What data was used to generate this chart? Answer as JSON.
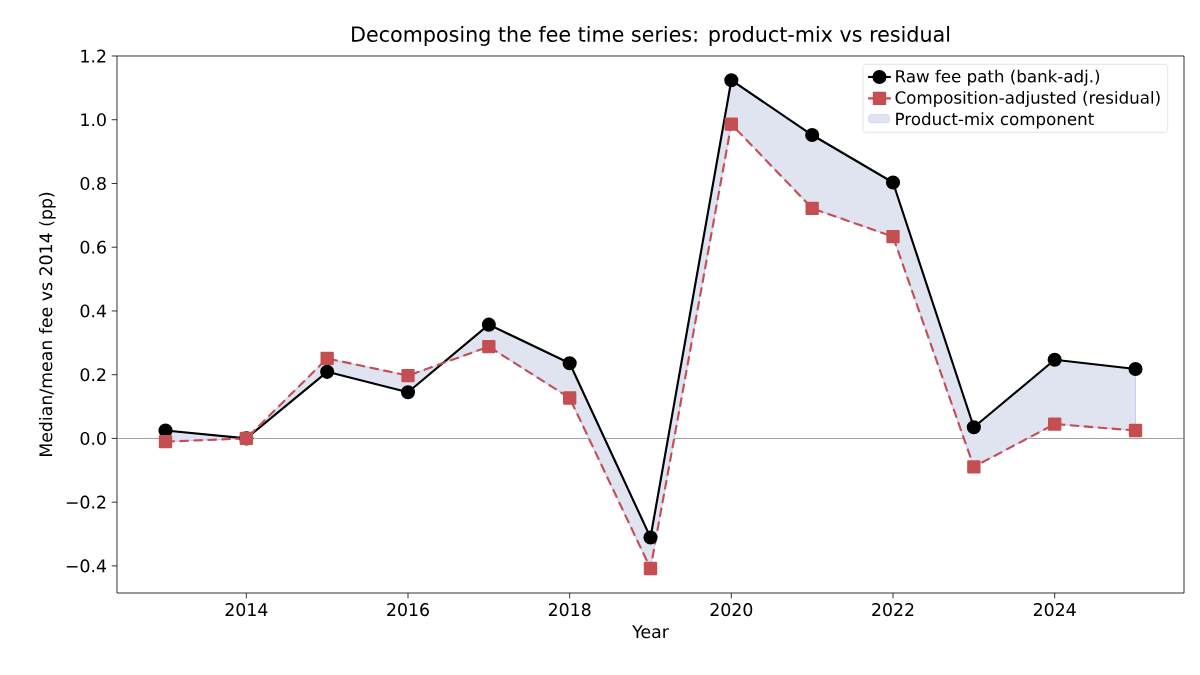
{
  "chart_data": {
    "type": "line",
    "title": "Decomposing the fee time series: product-mix vs residual",
    "xlabel": "Year",
    "ylabel": "Median/mean fee vs 2014 (pp)",
    "x": [
      2013,
      2014,
      2015,
      2016,
      2017,
      2018,
      2019,
      2020,
      2021,
      2022,
      2023,
      2024,
      2025
    ],
    "series": [
      {
        "name": "Raw fee path (bank-adj.)",
        "color": "#000000",
        "marker": "circle",
        "line_style": "solid",
        "values": [
          0.025,
          0,
          0.209,
          0.145,
          0.357,
          0.236,
          -0.311,
          1.124,
          0.952,
          0.803,
          0.035,
          0.247,
          0.218
        ],
        "lower": [
          -0.01,
          0,
          0.251,
          0.197,
          0.288,
          0.127,
          -0.408,
          0.986,
          0.722,
          0.633,
          -0.089,
          0.045,
          0.025
        ],
        "upper": [
          0.025,
          0,
          0.209,
          0.145,
          0.357,
          0.236,
          -0.311,
          1.124,
          0.952,
          0.803,
          0.035,
          0.247,
          0.218
        ]
      },
      {
        "name": "Composition-adjusted (residual)",
        "color": "#c44e52",
        "marker": "square",
        "line_style": "dashed",
        "values": [
          -0.01,
          0,
          0.251,
          0.197,
          0.288,
          0.127,
          -0.408,
          0.986,
          0.722,
          0.633,
          -0.089,
          0.045,
          0.025
        ]
      }
    ],
    "annotations": [
      "Product-mix component"
    ],
    "xlim": [
      2012.4,
      2025.6
    ],
    "ylim": [
      -0.485,
      1.2
    ],
    "xticks": [
      2014,
      2016,
      2018,
      2020,
      2022,
      2024
    ],
    "yticks": [
      {
        "value": -0.4,
        "label": "−0.4"
      },
      {
        "value": -0.2,
        "label": "−0.2"
      },
      {
        "value": 0,
        "label": "0.0"
      },
      {
        "value": 0.2,
        "label": "0.2"
      },
      {
        "value": 0.4,
        "label": "0.4"
      },
      {
        "value": 0.6,
        "label": "0.6"
      },
      {
        "value": 0.8,
        "label": "0.8"
      },
      {
        "value": 1.0,
        "label": "1.0"
      },
      {
        "value": 1.2,
        "label": "1.2"
      }
    ],
    "ref_lines": [
      {
        "axis": "y",
        "value": 0,
        "color": "#808080"
      }
    ],
    "legend": "top right"
  }
}
